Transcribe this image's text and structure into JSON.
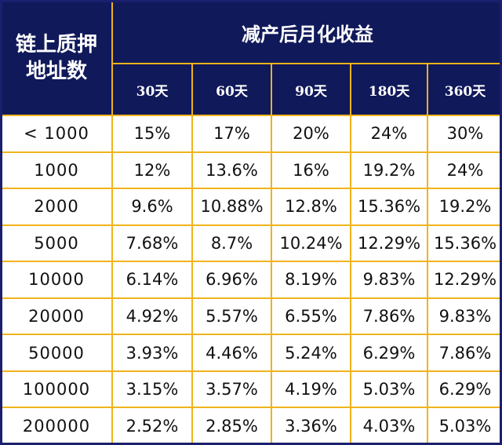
{
  "header": {
    "corner_line1": "链上质押",
    "corner_line2": "地址数",
    "group_title": "减产后月化收益",
    "periods": [
      "30天",
      "60天",
      "90天",
      "180天",
      "360天"
    ]
  },
  "rows": [
    {
      "address_count": "< 1000",
      "values": [
        "15%",
        "17%",
        "20%",
        "24%",
        "30%"
      ]
    },
    {
      "address_count": "1000",
      "values": [
        "12%",
        "13.6%",
        "16%",
        "19.2%",
        "24%"
      ]
    },
    {
      "address_count": "2000",
      "values": [
        "9.6%",
        "10.88%",
        "12.8%",
        "15.36%",
        "19.2%"
      ]
    },
    {
      "address_count": "5000",
      "values": [
        "7.68%",
        "8.7%",
        "10.24%",
        "12.29%",
        "15.36%"
      ]
    },
    {
      "address_count": "10000",
      "values": [
        "6.14%",
        "6.96%",
        "8.19%",
        "9.83%",
        "12.29%"
      ]
    },
    {
      "address_count": "20000",
      "values": [
        "4.92%",
        "5.57%",
        "6.55%",
        "7.86%",
        "9.83%"
      ]
    },
    {
      "address_count": "50000",
      "values": [
        "3.93%",
        "4.46%",
        "5.24%",
        "6.29%",
        "7.86%"
      ]
    },
    {
      "address_count": "100000",
      "values": [
        "3.15%",
        "3.57%",
        "4.19%",
        "5.03%",
        "6.29%"
      ]
    },
    {
      "address_count": "200000",
      "values": [
        "2.52%",
        "2.85%",
        "3.36%",
        "4.03%",
        "5.03%"
      ]
    }
  ],
  "colors": {
    "header_bg": "#10195a",
    "border": "#f0b31c"
  }
}
